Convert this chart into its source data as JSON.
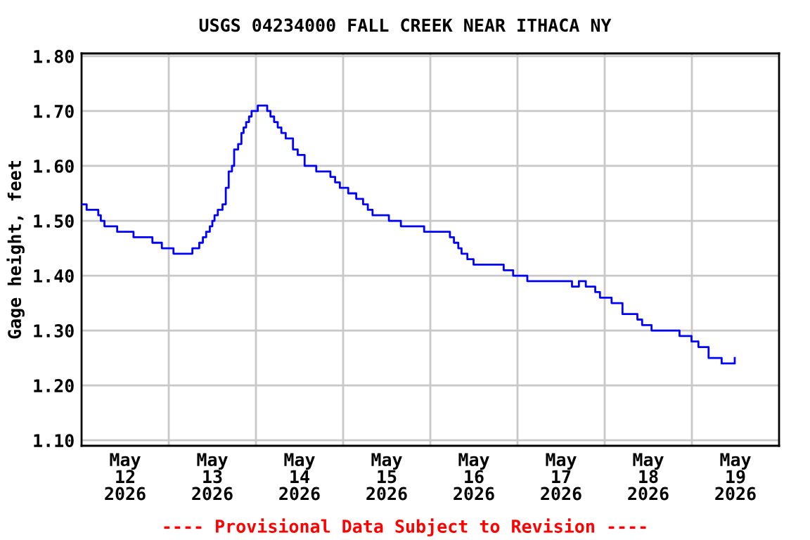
{
  "chart_data": {
    "type": "step",
    "title": "USGS 04234000 FALL CREEK NEAR ITHACA NY",
    "ylabel": "Gage height, feet",
    "annotations": [
      "---- Provisional Data Subject to Revision ----"
    ],
    "x": [
      "2026-05-12T00:06",
      "2026-05-12T01:24",
      "2026-05-12T04:36",
      "2026-05-12T05:18",
      "2026-05-12T06:18",
      "2026-05-12T09:48",
      "2026-05-12T14:18",
      "2026-05-12T19:30",
      "2026-05-12T22:06",
      "2026-05-13T01:18",
      "2026-05-13T06:30",
      "2026-05-13T08:24",
      "2026-05-13T09:24",
      "2026-05-13T10:18",
      "2026-05-13T11:18",
      "2026-05-13T12:00",
      "2026-05-13T12:36",
      "2026-05-13T13:30",
      "2026-05-13T14:48",
      "2026-05-13T15:42",
      "2026-05-13T16:30",
      "2026-05-13T17:24",
      "2026-05-13T18:00",
      "2026-05-13T19:06",
      "2026-05-13T20:00",
      "2026-05-13T20:36",
      "2026-05-13T21:18",
      "2026-05-13T22:06",
      "2026-05-13T22:48",
      "2026-05-14T00:30",
      "2026-05-14T02:24",
      "2026-05-14T03:06",
      "2026-05-14T04:00",
      "2026-05-14T05:00",
      "2026-05-14T06:00",
      "2026-05-14T07:00",
      "2026-05-14T08:12",
      "2026-05-14T10:12",
      "2026-05-14T11:30",
      "2026-05-14T13:24",
      "2026-05-14T16:36",
      "2026-05-14T20:30",
      "2026-05-14T21:48",
      "2026-05-14T23:06",
      "2026-05-15T01:24",
      "2026-05-15T03:36",
      "2026-05-15T05:30",
      "2026-05-15T06:48",
      "2026-05-15T08:06",
      "2026-05-15T12:36",
      "2026-05-15T15:54",
      "2026-05-15T22:18",
      "2026-05-16T04:42",
      "2026-05-16T05:24",
      "2026-05-16T06:30",
      "2026-05-16T07:42",
      "2026-05-16T08:36",
      "2026-05-16T10:12",
      "2026-05-16T11:54",
      "2026-05-16T20:12",
      "2026-05-16T22:48",
      "2026-05-17T02:42",
      "2026-05-17T15:00",
      "2026-05-17T16:54",
      "2026-05-17T18:48",
      "2026-05-17T21:24",
      "2026-05-17T22:42",
      "2026-05-18T01:54",
      "2026-05-18T04:54",
      "2026-05-18T09:00",
      "2026-05-18T10:18",
      "2026-05-18T12:54",
      "2026-05-18T20:00",
      "2026-05-18T20:36",
      "2026-05-18T23:54",
      "2026-05-19T01:48",
      "2026-05-19T04:36",
      "2026-05-19T08:12",
      "2026-05-19T11:48"
    ],
    "series": [
      {
        "color": "#0000ff",
        "values": [
          1.53,
          1.52,
          1.51,
          1.5,
          1.49,
          1.48,
          1.47,
          1.46,
          1.45,
          1.44,
          1.45,
          1.46,
          1.47,
          1.48,
          1.49,
          1.5,
          1.51,
          1.52,
          1.53,
          1.56,
          1.59,
          1.6,
          1.63,
          1.64,
          1.66,
          1.67,
          1.68,
          1.69,
          1.7,
          1.71,
          1.71,
          1.7,
          1.69,
          1.68,
          1.67,
          1.66,
          1.65,
          1.63,
          1.62,
          1.6,
          1.59,
          1.58,
          1.57,
          1.56,
          1.55,
          1.54,
          1.53,
          1.52,
          1.51,
          1.5,
          1.49,
          1.48,
          1.48,
          1.47,
          1.46,
          1.45,
          1.44,
          1.43,
          1.42,
          1.41,
          1.4,
          1.39,
          1.38,
          1.39,
          1.38,
          1.37,
          1.36,
          1.35,
          1.33,
          1.32,
          1.31,
          1.3,
          1.3,
          1.29,
          1.28,
          1.27,
          1.25,
          1.24,
          1.25
        ]
      }
    ],
    "xlim": [
      "2026-05-12",
      "2026-05-20"
    ],
    "xticks": [
      {
        "value": "2026-05-12T12:00",
        "label": "May\n12\n2026"
      },
      {
        "value": "2026-05-13T12:00",
        "label": "May\n13\n2026"
      },
      {
        "value": "2026-05-14T12:00",
        "label": "May\n14\n2026"
      },
      {
        "value": "2026-05-15T12:00",
        "label": "May\n15\n2026"
      },
      {
        "value": "2026-05-16T12:00",
        "label": "May\n16\n2026"
      },
      {
        "value": "2026-05-17T12:00",
        "label": "May\n17\n2026"
      },
      {
        "value": "2026-05-18T12:00",
        "label": "May\n18\n2026"
      },
      {
        "value": "2026-05-19T12:00",
        "label": "May\n19\n2026"
      },
      {
        "value": "2026-05-13",
        "label": null
      },
      {
        "value": "2026-05-14",
        "label": null
      },
      {
        "value": "2026-05-15",
        "label": null
      },
      {
        "value": "2026-05-16",
        "label": null
      },
      {
        "value": "2026-05-17",
        "label": null
      },
      {
        "value": "2026-05-18",
        "label": null
      },
      {
        "value": "2026-05-19",
        "label": null
      }
    ],
    "ylim": [
      1.09,
      1.805
    ],
    "yticks": [
      {
        "value": 1.1,
        "label": "1.10"
      },
      {
        "value": 1.2,
        "label": "1.20"
      },
      {
        "value": 1.3,
        "label": "1.30"
      },
      {
        "value": 1.4,
        "label": "1.40"
      },
      {
        "value": 1.5,
        "label": "1.50"
      },
      {
        "value": 1.6,
        "label": "1.60"
      },
      {
        "value": 1.7,
        "label": "1.70"
      },
      {
        "value": 1.8,
        "label": "1.80"
      }
    ],
    "grid": true,
    "legend": false,
    "line_style": "solid"
  }
}
